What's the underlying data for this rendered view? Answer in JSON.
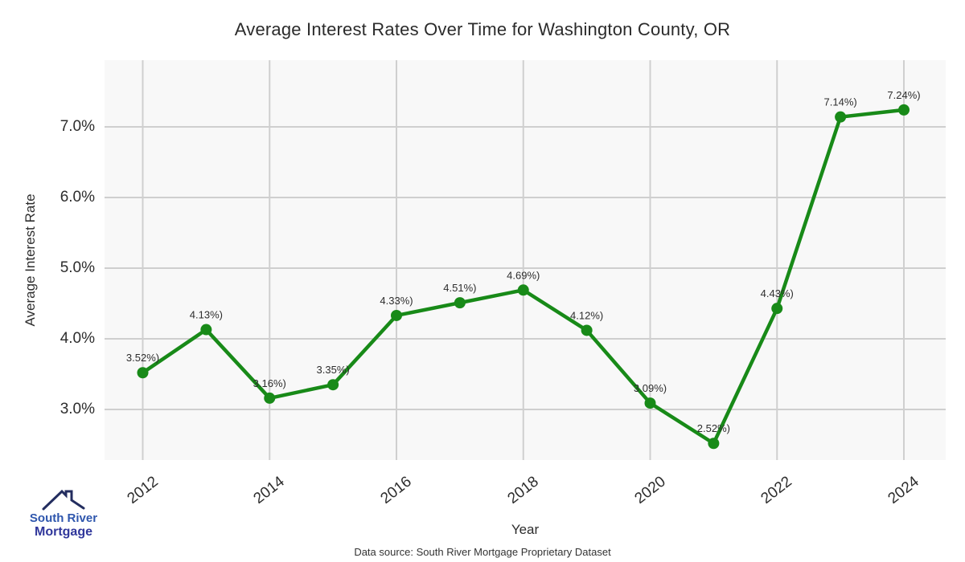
{
  "title": "Average Interest Rates Over Time for Washington County, OR",
  "footer": "Data source: South River Mortgage Proprietary Dataset",
  "logo": {
    "line1": "South River",
    "line2": "Mortgage"
  },
  "colors": {
    "line": "#188a18",
    "marker": "#188a18",
    "plot_background": "#f8f8f8",
    "gridline": "#cfcfcf",
    "title_text": "#2b2b2b",
    "tick_text": "#2d2d2d",
    "point_label_text": "#2d2d2d",
    "logo_text_primary": "#2e56ad",
    "logo_text_secondary": "#30379b",
    "logo_roof": "#232d5f"
  },
  "y_axis": {
    "label": "Average Interest Rate",
    "ticks": [
      {
        "value": 7.0,
        "label": "7.0%"
      },
      {
        "value": 6.0,
        "label": "6.0%"
      },
      {
        "value": 5.0,
        "label": "5.0%"
      },
      {
        "value": 4.0,
        "label": "4.0%"
      },
      {
        "value": 3.0,
        "label": "3.0%"
      }
    ]
  },
  "x_axis": {
    "label": "Year",
    "ticks": [
      {
        "value": 2012,
        "label": "2012"
      },
      {
        "value": 2014,
        "label": "2014"
      },
      {
        "value": 2016,
        "label": "2016"
      },
      {
        "value": 2018,
        "label": "2018"
      },
      {
        "value": 2020,
        "label": "2020"
      },
      {
        "value": 2022,
        "label": "2022"
      },
      {
        "value": 2024,
        "label": "2024"
      }
    ]
  },
  "chart_data": {
    "type": "line",
    "title": "Average Interest Rates Over Time for Washington County, OR",
    "xlabel": "Year",
    "ylabel": "Average Interest Rate",
    "x": [
      2012,
      2013,
      2014,
      2015,
      2016,
      2017,
      2018,
      2019,
      2020,
      2021,
      2022,
      2023,
      2024
    ],
    "values": [
      3.52,
      4.13,
      3.16,
      3.35,
      4.33,
      4.51,
      4.69,
      4.12,
      3.09,
      2.52,
      4.43,
      7.14,
      7.24
    ],
    "point_labels": [
      "3.52%)",
      "4.13%)",
      "3.16%)",
      "3.35%)",
      "4.33%)",
      "4.51%)",
      "4.69%)",
      "4.12%)",
      "3.09%)",
      "2.52%)",
      "4.43%)",
      "7.14%)",
      "7.24%)"
    ],
    "xlim": [
      2011.4,
      2024.66
    ],
    "ylim": [
      2.28,
      7.94
    ],
    "grid": true,
    "legend_position": "none",
    "marker": "circle",
    "line_color": "#188a18"
  }
}
